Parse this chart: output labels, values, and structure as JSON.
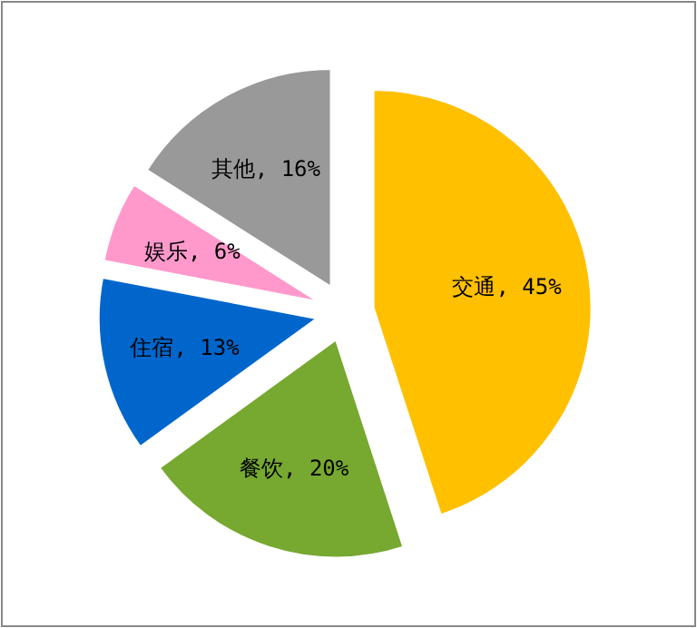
{
  "chart_data": {
    "type": "pie",
    "categories": [
      "交通, 45%",
      "餐饮, 20%",
      "住宿, 13%",
      "娱乐, 6%",
      "其他, 16%"
    ],
    "values": [
      45,
      20,
      13,
      6,
      16
    ],
    "colors": [
      "#ffc000",
      "#77a830",
      "#0066cc",
      "#ff99cc",
      "#999999"
    ]
  }
}
